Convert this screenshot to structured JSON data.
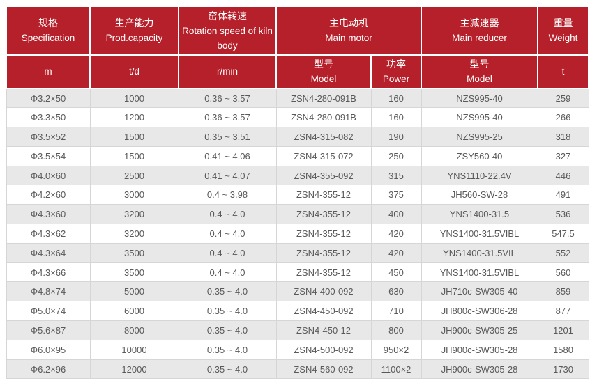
{
  "colors": {
    "header_bg": "#b5202a",
    "header_text": "#ffffff",
    "row_alt_bg": "#e8e8e8",
    "row_bg": "#ffffff",
    "cell_border": "#d6d6d6",
    "cell_text": "#595959"
  },
  "header": {
    "spec_zh": "规格",
    "spec_en": "Specification",
    "spec_unit": "m",
    "capacity_zh": "生产能力",
    "capacity_en": "Prod.capacity",
    "capacity_unit": "t/d",
    "rotation_zh": "窑体转速",
    "rotation_en": "Rotation speed of kiln body",
    "rotation_unit": "r/min",
    "motor_zh": "主电动机",
    "motor_en": "Main motor",
    "motor_model_zh": "型号",
    "motor_model_en": "Model",
    "motor_power_zh": "功率",
    "motor_power_en": "Power",
    "reducer_zh": "主减速器",
    "reducer_en": "Main reducer",
    "reducer_model_zh": "型号",
    "reducer_model_en": "Model",
    "weight_zh": "重量",
    "weight_en": "Weight",
    "weight_unit": "t"
  },
  "table": {
    "rows": [
      [
        "Φ3.2×50",
        "1000",
        "0.36 ~ 3.57",
        "ZSN4-280-091B",
        "160",
        "NZS995-40",
        "259"
      ],
      [
        "Φ3.3×50",
        "1200",
        "0.36 ~ 3.57",
        "ZSN4-280-091B",
        "160",
        "NZS995-40",
        "266"
      ],
      [
        "Φ3.5×52",
        "1500",
        "0.35 ~ 3.51",
        "ZSN4-315-082",
        "190",
        "NZS995-25",
        "318"
      ],
      [
        "Φ3.5×54",
        "1500",
        "0.41 ~ 4.06",
        "ZSN4-315-072",
        "250",
        "ZSY560-40",
        "327"
      ],
      [
        "Φ4.0×60",
        "2500",
        "0.41 ~ 4.07",
        "ZSN4-355-092",
        "315",
        "YNS1110-22.4V",
        "446"
      ],
      [
        "Φ4.2×60",
        "3000",
        "0.4 ~ 3.98",
        "ZSN4-355-12",
        "375",
        "JH560-SW-28",
        "491"
      ],
      [
        "Φ4.3×60",
        "3200",
        "0.4 ~ 4.0",
        "ZSN4-355-12",
        "400",
        "YNS1400-31.5",
        "536"
      ],
      [
        "Φ4.3×62",
        "3200",
        "0.4 ~ 4.0",
        "ZSN4-355-12",
        "420",
        "YNS1400-31.5VIBL",
        "547.5"
      ],
      [
        "Φ4.3×64",
        "3500",
        "0.4 ~ 4.0",
        "ZSN4-355-12",
        "420",
        "YNS1400-31.5VIL",
        "552"
      ],
      [
        "Φ4.3×66",
        "3500",
        "0.4 ~ 4.0",
        "ZSN4-355-12",
        "450",
        "YNS1400-31.5VIBL",
        "560"
      ],
      [
        "Φ4.8×74",
        "5000",
        "0.35 ~ 4.0",
        "ZSN4-400-092",
        "630",
        "JH710c-SW305-40",
        "859"
      ],
      [
        "Φ5.0×74",
        "6000",
        "0.35 ~ 4.0",
        "ZSN4-450-092",
        "710",
        "JH800c-SW306-28",
        "877"
      ],
      [
        "Φ5.6×87",
        "8000",
        "0.35 ~ 4.0",
        "ZSN4-450-12",
        "800",
        "JH900c-SW305-25",
        "1201"
      ],
      [
        "Φ6.0×95",
        "10000",
        "0.35 ~ 4.0",
        "ZSN4-500-092",
        "950×2",
        "JH900c-SW305-28",
        "1580"
      ],
      [
        "Φ6.2×96",
        "12000",
        "0.35 ~ 4.0",
        "ZSN4-560-092",
        "1100×2",
        "JH900c-SW305-28",
        "1730"
      ]
    ]
  }
}
